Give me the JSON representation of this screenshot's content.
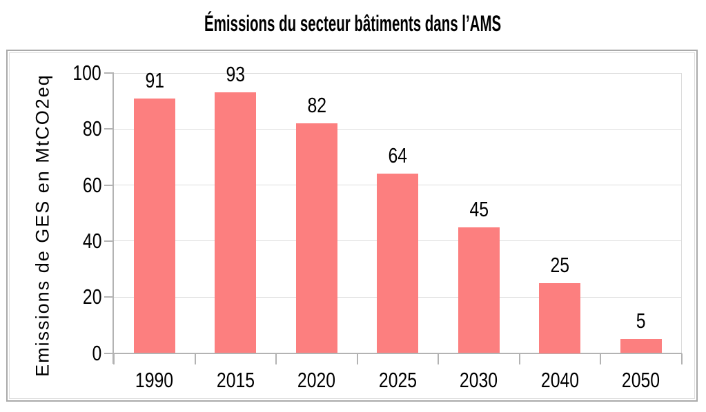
{
  "chart_data": {
    "type": "bar",
    "title": "Émissions du secteur bâtiments dans l’AMS",
    "categories": [
      "1990",
      "2015",
      "2020",
      "2025",
      "2030",
      "2040",
      "2050"
    ],
    "values": [
      91,
      93,
      82,
      64,
      45,
      25,
      5
    ],
    "data_labels": [
      "91",
      "93",
      "82",
      "64",
      "45",
      "25",
      "5"
    ],
    "xlabel": "",
    "ylabel": "Emissions de GES en MtCO2eq",
    "ylim": [
      0,
      100
    ],
    "yticks": [
      0,
      20,
      40,
      60,
      80,
      100
    ],
    "grid": true,
    "legend": false,
    "colors": {
      "bar": "#fc7f7f",
      "gridline": "#dcdcdc",
      "axis": "#b3b3b3",
      "text": "#000000",
      "frame_outer": "#aaaaaa",
      "frame_inner": "#dedede",
      "background": "#ffffff"
    }
  }
}
